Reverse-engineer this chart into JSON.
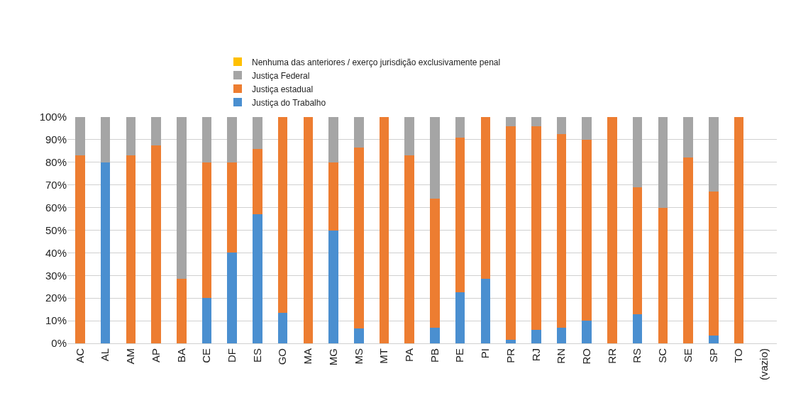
{
  "chart_data": {
    "type": "bar",
    "stacked": true,
    "categories": [
      "AC",
      "AL",
      "AM",
      "AP",
      "BA",
      "CE",
      "DF",
      "ES",
      "GO",
      "MA",
      "MG",
      "MS",
      "MT",
      "PA",
      "PB",
      "PE",
      "PI",
      "PR",
      "RJ",
      "RN",
      "RO",
      "RR",
      "RS",
      "SC",
      "SE",
      "SP",
      "TO",
      "(vazio)"
    ],
    "series": [
      {
        "name": "Justiça do Trabalho",
        "color": "#4a8fd0",
        "values": [
          0,
          80,
          0,
          0,
          0,
          20,
          40,
          57,
          13.5,
          0,
          50,
          6.5,
          0,
          0,
          7,
          22.5,
          28.5,
          1.5,
          6,
          7,
          10,
          0,
          13,
          0,
          0,
          3.5,
          0,
          null
        ]
      },
      {
        "name": "Justiça estadual",
        "color": "#ed7d31",
        "values": [
          83,
          0,
          83,
          87.5,
          28.5,
          60,
          40,
          29,
          86.5,
          100,
          30,
          80,
          100,
          83,
          57,
          68.5,
          71.5,
          94.5,
          90,
          85.5,
          80,
          100,
          56,
          60,
          82,
          63.5,
          100,
          null
        ]
      },
      {
        "name": "Justiça Federal",
        "color": "#a5a5a5",
        "values": [
          17,
          20,
          17,
          12.5,
          71.5,
          20,
          20,
          14,
          0,
          0,
          20,
          13.5,
          0,
          17,
          36,
          9,
          0,
          4,
          4,
          7.5,
          10,
          0,
          31,
          40,
          18,
          33,
          0,
          null
        ]
      },
      {
        "name": "Nenhuma das anteriores / exerço jurisdição exclusivamente penal",
        "color": "#ffc000",
        "values": [
          0,
          0,
          0,
          0,
          0,
          0,
          0,
          0,
          0,
          0,
          0,
          0,
          0,
          0,
          0,
          0,
          0,
          0,
          0,
          0,
          0,
          0,
          0,
          0,
          0,
          0,
          0,
          null
        ]
      }
    ],
    "ylim": [
      0,
      100
    ],
    "yticks": [
      {
        "value": 0,
        "label": "0%"
      },
      {
        "value": 10,
        "label": "10%"
      },
      {
        "value": 20,
        "label": "20%"
      },
      {
        "value": 30,
        "label": "30%"
      },
      {
        "value": 40,
        "label": "40%"
      },
      {
        "value": 50,
        "label": "50%"
      },
      {
        "value": 60,
        "label": "60%"
      },
      {
        "value": 70,
        "label": "70%"
      },
      {
        "value": 80,
        "label": "80%"
      },
      {
        "value": 90,
        "label": "90%"
      },
      {
        "value": 100,
        "label": "100%"
      }
    ],
    "grid": "y",
    "legend": "top"
  }
}
